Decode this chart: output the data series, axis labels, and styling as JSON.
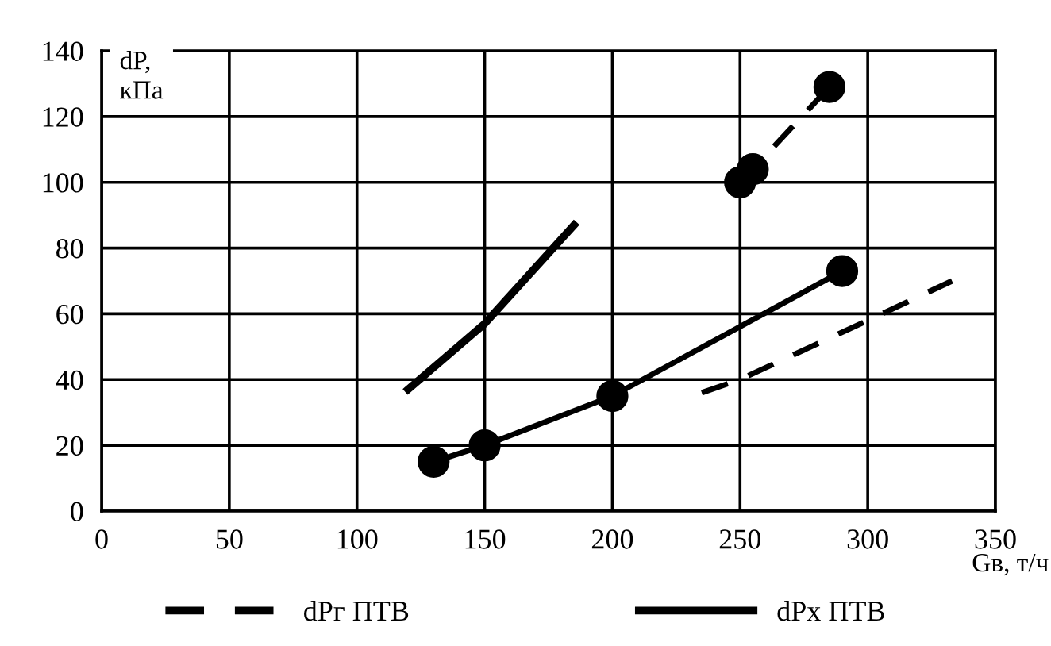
{
  "chart_data": {
    "type": "line",
    "xlabel": "Gв, т/ч",
    "ylabel": "dP,\nкПа",
    "xlim": [
      0,
      350
    ],
    "xticks": [
      0,
      50,
      100,
      150,
      200,
      250,
      300,
      350
    ],
    "ylim": [
      0,
      140
    ],
    "yticks": [
      0,
      20,
      40,
      60,
      80,
      100,
      120,
      140
    ],
    "grid": true,
    "legend": "bottom",
    "series": [
      {
        "name": "dPг ПТВ",
        "color": "#000000",
        "line_style": "dashed",
        "marker": "none",
        "x": [
          235,
          250,
          300,
          333
        ],
        "values": [
          36,
          40,
          58,
          70
        ]
      },
      {
        "color": "#000000",
        "line_style": "dashed",
        "marker": "circle",
        "x": [
          250,
          255,
          285
        ],
        "values": [
          100,
          104,
          129
        ]
      },
      {
        "color": "#000000",
        "line_style": "solid",
        "marker": "none",
        "x": [
          120,
          150,
          185
        ],
        "values": [
          37,
          57,
          87
        ]
      },
      {
        "name": "dPx ПТВ",
        "color": "#000000",
        "line_style": "solid",
        "marker": "circle",
        "x": [
          130,
          150,
          200,
          290
        ],
        "values": [
          15,
          20,
          35,
          73
        ]
      }
    ]
  }
}
